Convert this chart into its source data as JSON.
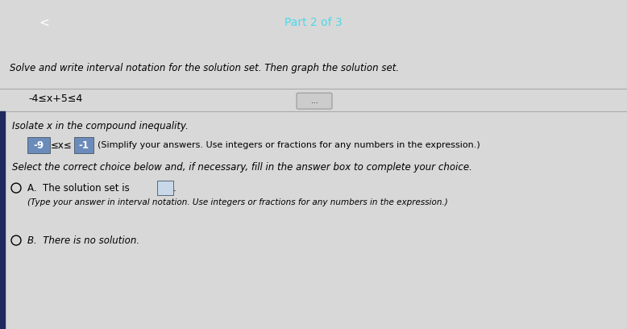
{
  "header_text": "Part 2 of 3",
  "header_bg": "#1e2a5e",
  "header_text_color": "#4dd9e8",
  "body_bg": "#d8d8d8",
  "content_bg": "#e8e8e8",
  "back_arrow": "<",
  "title": "Solve and write interval notation for the solution set. Then graph the solution set.",
  "equation": "-4≤x+5≤4",
  "isolate_label": "Isolate x in the compound inequality.",
  "inequality_note": "(Simplify your answers. Use integers or fractions for any numbers in the expression.)",
  "select_label": "Select the correct choice below and, if necessary, fill in the answer box to complete your choice.",
  "choice_a_prefix": "A.  The solution set is",
  "choice_a_suffix": ".",
  "choice_a_sub": "(Type your answer in interval notation. Use integers or fractions for any numbers in the expression.)",
  "choice_b": "B.  There is no solution.",
  "dots_btn": "...",
  "box_color": "#6b8cba",
  "box_text_color": "#ffffff",
  "left_bar_color": "#1e2a5e",
  "divider_color": "#aaaaaa",
  "answer_box_color": "#c8d8e8"
}
